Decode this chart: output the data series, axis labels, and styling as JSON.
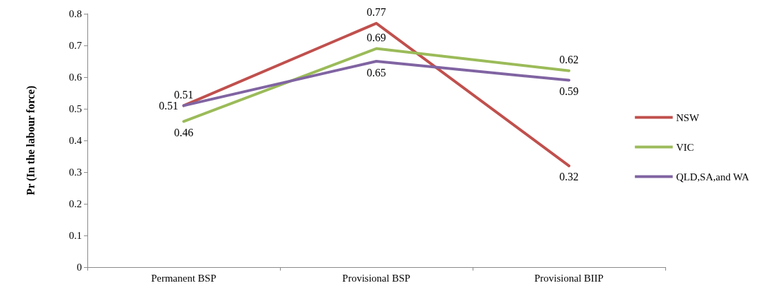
{
  "chart_data": {
    "type": "line",
    "ylabel": "Pr (In the labour force)",
    "categories": [
      "Permanent BSP",
      "Provisional BSP",
      "Provisional BIIP"
    ],
    "series": [
      {
        "name": "NSW",
        "color": "#c0504d",
        "values": [
          0.51,
          0.77,
          0.32
        ]
      },
      {
        "name": "VIC",
        "color": "#9bbb59",
        "values": [
          0.46,
          0.69,
          0.62
        ]
      },
      {
        "name": "QLD,SA,and WA",
        "color": "#8064a2",
        "values": [
          0.51,
          0.65,
          0.59
        ]
      }
    ],
    "ylim": [
      0,
      0.8
    ],
    "yticks": [
      0,
      0.1,
      0.2,
      0.3,
      0.4,
      0.5,
      0.6,
      0.7,
      0.8
    ],
    "data_labels": true,
    "grid": false,
    "legend": "right",
    "marker": "none",
    "line_style": "solid"
  }
}
